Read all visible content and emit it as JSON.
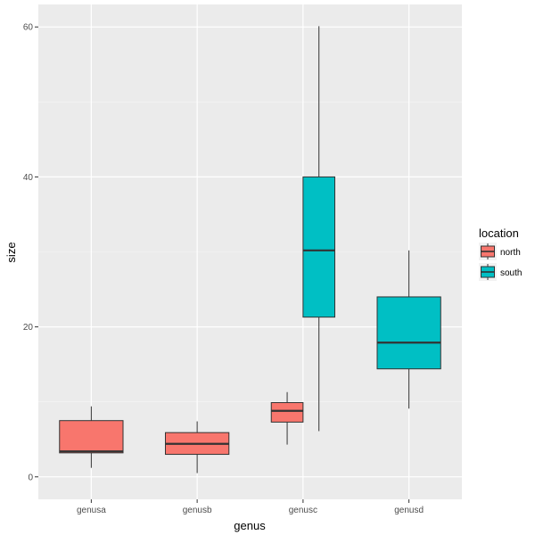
{
  "chart_data": {
    "type": "boxplot",
    "xlabel": "genus",
    "ylabel": "size",
    "categories": [
      "genusa",
      "genusb",
      "genusc",
      "genusd"
    ],
    "ylim": [
      -3,
      63
    ],
    "yticks": [
      0,
      20,
      40,
      60
    ],
    "grid": true,
    "legend": {
      "title": "location",
      "placement": "right",
      "entries": [
        {
          "label": "north",
          "color": "#F8766D"
        },
        {
          "label": "south",
          "color": "#00BFC4"
        }
      ]
    },
    "boxes": [
      {
        "category": "genusa",
        "group": "north",
        "min": 1.2,
        "q1": 3.2,
        "median": 3.4,
        "q3": 7.5,
        "max": 9.4
      },
      {
        "category": "genusb",
        "group": "north",
        "min": 0.5,
        "q1": 3.0,
        "median": 4.4,
        "q3": 5.9,
        "max": 7.4
      },
      {
        "category": "genusc",
        "group": "north",
        "min": 4.3,
        "q1": 7.3,
        "median": 8.8,
        "q3": 9.9,
        "max": 11.3
      },
      {
        "category": "genusc",
        "group": "south",
        "min": 6.1,
        "q1": 21.3,
        "median": 30.2,
        "q3": 40.0,
        "max": 60.1
      },
      {
        "category": "genusd",
        "group": "south",
        "min": 9.1,
        "q1": 14.4,
        "median": 17.9,
        "q3": 24.0,
        "max": 30.2
      }
    ]
  }
}
